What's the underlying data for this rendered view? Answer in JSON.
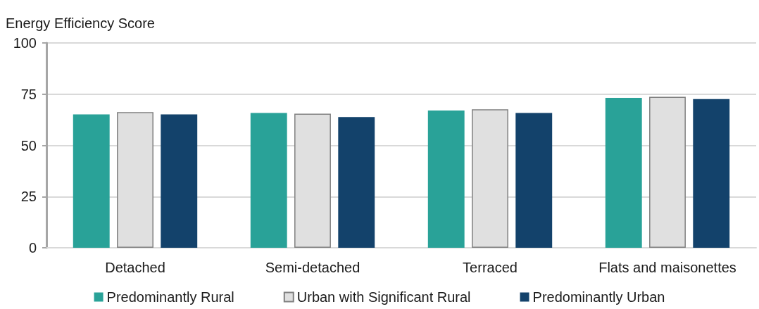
{
  "chart_data": {
    "type": "bar",
    "ylabel": "Energy Efficiency Score",
    "categories": [
      "Detached",
      "Semi-detached",
      "Terraced",
      "Flats and maisonettes"
    ],
    "series": [
      {
        "name": "Predominantly Rural",
        "color": "#29a298",
        "values": [
          65.1,
          65.8,
          67.0,
          73.2
        ]
      },
      {
        "name": "Urban with Significant Rural",
        "color": "#e0e0e0",
        "values": [
          66.2,
          65.5,
          67.6,
          73.7
        ]
      },
      {
        "name": "Predominantly Urban",
        "color": "#13426b",
        "values": [
          65.1,
          63.8,
          65.8,
          72.6
        ]
      }
    ],
    "ylim": [
      0,
      100
    ],
    "yticks": [
      0,
      25,
      50,
      75,
      100
    ],
    "grid": "y",
    "legend": "bottom"
  }
}
